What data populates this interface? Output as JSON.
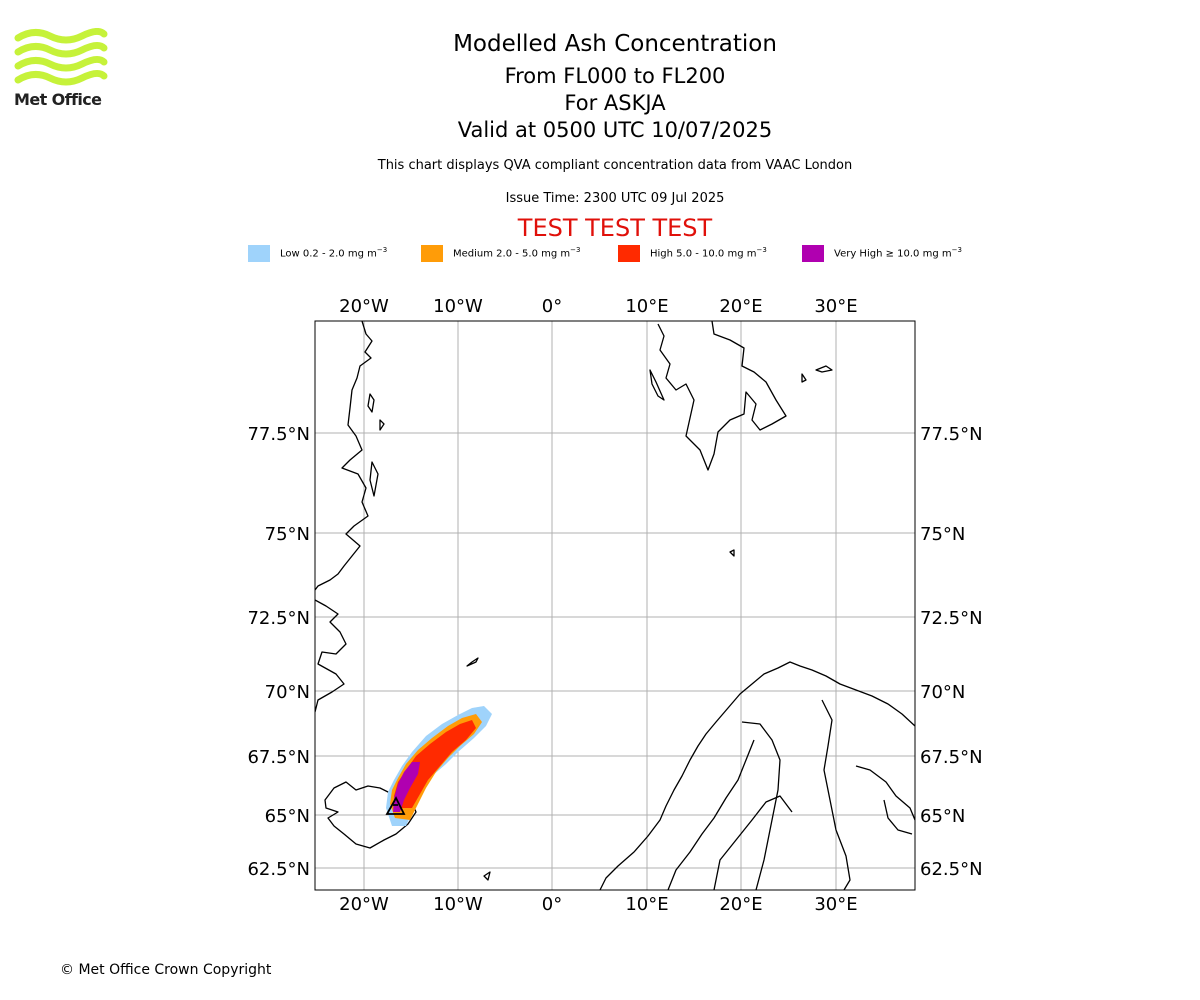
{
  "logo": {
    "name": "Met Office",
    "accent": "#c6f23a"
  },
  "title": {
    "line1": "Modelled Ash Concentration",
    "line2": "From FL000 to FL200",
    "line3": "For ASKJA",
    "line4": "Valid at 0500 UTC 10/07/2025"
  },
  "subtitle": "This chart displays QVA compliant concentration data from VAAC London",
  "issue_time": "Issue Time: 2300 UTC 09 Jul 2025",
  "test_banner": {
    "text": "TEST TEST TEST",
    "color": "#e0100a"
  },
  "legend": [
    {
      "label": "Low 0.2 - 2.0 mg m",
      "unit_exp": "−3",
      "color": "#9fd3fb"
    },
    {
      "label": "Medium 2.0 - 5.0 mg m",
      "unit_exp": "−3",
      "color": "#ff9c08"
    },
    {
      "label": "High 5.0 - 10.0 mg m",
      "unit_exp": "−3",
      "color": "#ff2a00"
    },
    {
      "label": "Very High ≥ 10.0 mg m",
      "unit_exp": "−3",
      "color": "#b000b0"
    }
  ],
  "map": {
    "lon_labels": [
      "20°W",
      "10°W",
      "0°",
      "10°E",
      "20°E",
      "30°E"
    ],
    "lat_labels": [
      "77.5°N",
      "75°N",
      "72.5°N",
      "70°N",
      "67.5°N",
      "65°N",
      "62.5°N"
    ],
    "grid": true,
    "volcano": "ASKJA",
    "icon": "volcano-triangle-icon"
  },
  "footer": "© Met Office Crown Copyright"
}
